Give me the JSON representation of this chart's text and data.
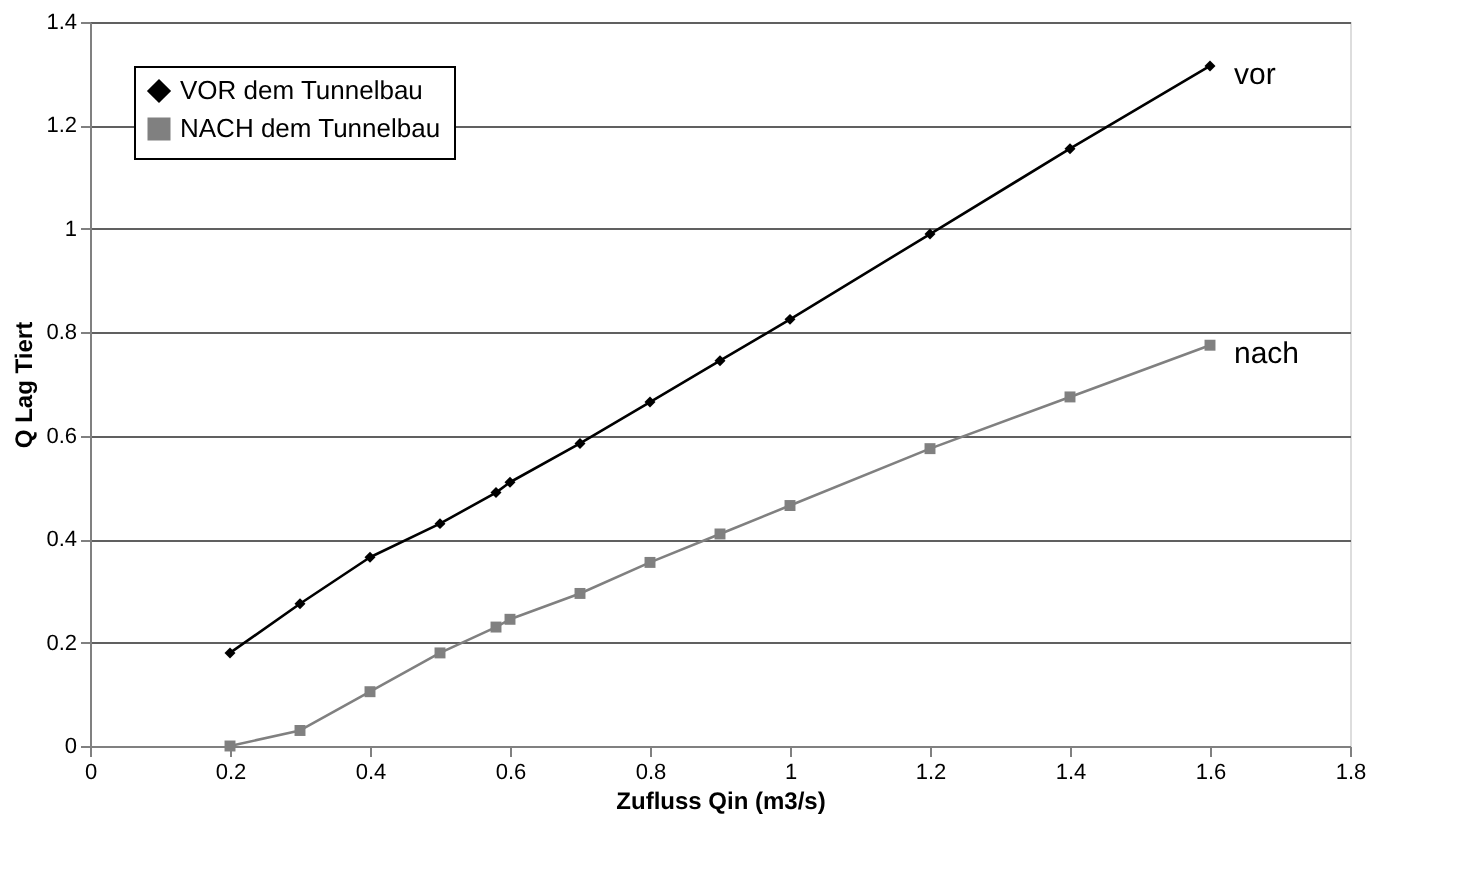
{
  "chart_data": {
    "type": "line",
    "xlabel": "Zufluss Qin (m3/s)",
    "ylabel": "Q Lag Tiert",
    "x": [
      0.2,
      0.3,
      0.4,
      0.5,
      0.58,
      0.6,
      0.7,
      0.8,
      0.9,
      1.0,
      1.2,
      1.4,
      1.6
    ],
    "series": [
      {
        "name": "VOR dem Tunnelbau",
        "color": "#000000",
        "marker": "diamond",
        "values": [
          0.18,
          0.275,
          0.365,
          0.43,
          0.49,
          0.51,
          0.585,
          0.665,
          0.745,
          0.825,
          0.99,
          1.155,
          1.315
        ]
      },
      {
        "name": "NACH dem Tunnelbau",
        "color": "#808080",
        "marker": "square",
        "values": [
          0.0,
          0.03,
          0.105,
          0.18,
          0.23,
          0.245,
          0.295,
          0.355,
          0.41,
          0.465,
          0.575,
          0.675,
          0.775
        ]
      }
    ],
    "xlim": [
      0,
      1.8
    ],
    "xticks": [
      0,
      0.2,
      0.4,
      0.6,
      0.8,
      1,
      1.2,
      1.4,
      1.6,
      1.8
    ],
    "ylim": [
      0,
      1.4
    ],
    "yticks": [
      0,
      0.2,
      0.4,
      0.6,
      0.8,
      1,
      1.2,
      1.4
    ],
    "grid": "y",
    "legend": "top left",
    "line_style": "solid",
    "annotations": [
      {
        "text": "vor",
        "x": 1.6,
        "y": 1.315
      },
      {
        "text": "nach",
        "x": 1.6,
        "y": 0.775
      }
    ]
  }
}
